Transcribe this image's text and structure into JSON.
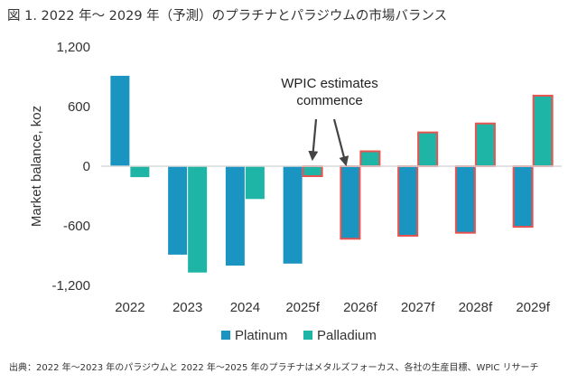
{
  "figure_title": "図 1. 2022 年～ 2029 年（予測）のプラチナとパラジウムの市場バランス",
  "source_note": "出典：2022 年～2023 年のパラジウムと 2022 年～2025 年のプラチナはメタルズフォーカス、各社の生産目標、WPIC リサーチ",
  "colors": {
    "platinum": "#1a94c0",
    "palladium": "#1fb5a6",
    "forecast_outline": "#e8534f",
    "arrow": "#444444",
    "axis": "#d9d9d9"
  },
  "chart_data": {
    "type": "bar",
    "title": "",
    "xlabel": "",
    "ylabel": "Market balance, koz",
    "ylim": [
      -1200,
      1200
    ],
    "yticks": [
      1200,
      600,
      0,
      -600,
      -1200
    ],
    "ytick_labels": [
      "1,200",
      "600",
      "0",
      "-600",
      "-1,200"
    ],
    "categories": [
      "2022",
      "2023",
      "2024",
      "2025f",
      "2026f",
      "2027f",
      "2028f",
      "2029f"
    ],
    "series": [
      {
        "name": "Platinum",
        "values": [
          910,
          -890,
          -1000,
          -980,
          -730,
          -700,
          -670,
          -610
        ],
        "forecast_outline": [
          false,
          false,
          false,
          false,
          true,
          true,
          true,
          true
        ]
      },
      {
        "name": "Palladium",
        "values": [
          -110,
          -1070,
          -330,
          -100,
          150,
          340,
          430,
          710
        ],
        "forecast_outline": [
          false,
          false,
          false,
          true,
          true,
          true,
          true,
          true
        ]
      }
    ],
    "legend": [
      "Platinum",
      "Palladium"
    ],
    "legend_position": "bottom",
    "annotation": {
      "lines": [
        "WPIC estimates",
        "commence"
      ]
    }
  }
}
